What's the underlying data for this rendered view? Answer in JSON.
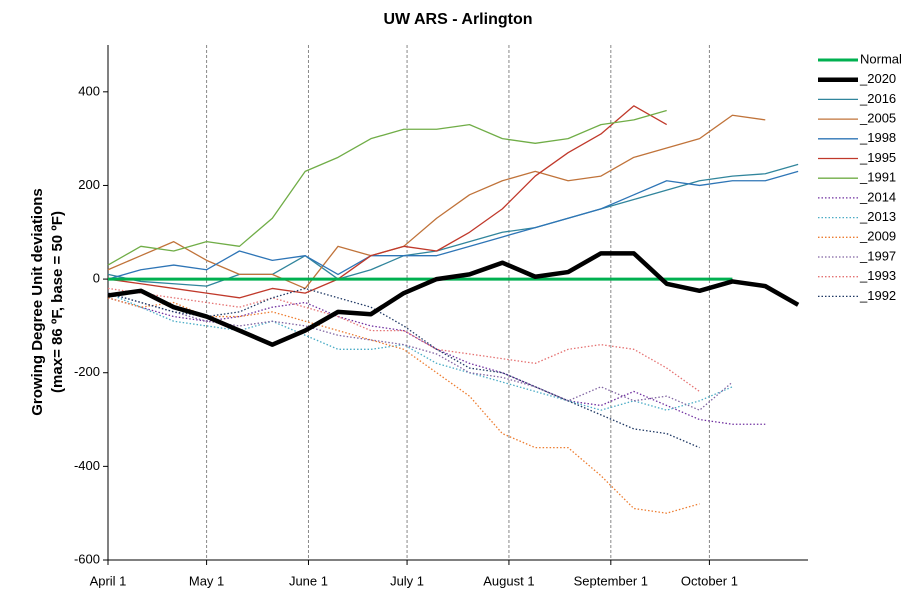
{
  "chart_data": {
    "type": "line",
    "title": "UW ARS - Arlington",
    "y_label": [
      "Growing Degree Unit deviations",
      "(max= 86 ºF, base = 50 ºF)"
    ],
    "x": [
      0,
      10,
      20,
      30,
      40,
      50,
      60,
      70,
      80,
      90,
      100,
      110,
      120,
      130,
      140,
      150,
      160,
      170,
      180,
      190,
      200,
      210
    ],
    "xlim": [
      0,
      213
    ],
    "xticks": [
      {
        "value": 0,
        "label": "April 1"
      },
      {
        "value": 30,
        "label": "May 1"
      },
      {
        "value": 61,
        "label": "June 1"
      },
      {
        "value": 91,
        "label": "July 1"
      },
      {
        "value": 122,
        "label": "August 1"
      },
      {
        "value": 153,
        "label": "September 1"
      },
      {
        "value": 183,
        "label": "October 1"
      }
    ],
    "ylim": [
      -600,
      500
    ],
    "yticks": [
      -600,
      -400,
      -200,
      0,
      200,
      400
    ],
    "x_grid": true,
    "legend": "right",
    "series": [
      {
        "name": "Normal",
        "color": "#00b050",
        "width": 3,
        "style": "solid",
        "values": [
          0,
          0,
          0,
          0,
          0,
          0,
          0,
          0,
          0,
          0,
          0,
          0,
          0,
          0,
          0,
          0,
          0,
          0,
          0,
          0,
          null,
          null
        ]
      },
      {
        "name": "_2020",
        "color": "#000000",
        "width": 4.5,
        "style": "solid",
        "values": [
          -35,
          -25,
          -60,
          -80,
          -110,
          -140,
          -110,
          -70,
          -75,
          -30,
          0,
          10,
          35,
          5,
          15,
          55,
          55,
          -10,
          -25,
          -5,
          -15,
          -55
        ]
      },
      {
        "name": "_2016",
        "color": "#31859c",
        "width": 1.3,
        "style": "solid",
        "values": [
          10,
          -5,
          -10,
          -15,
          10,
          10,
          50,
          0,
          20,
          50,
          60,
          80,
          100,
          110,
          130,
          150,
          170,
          190,
          210,
          220,
          225,
          245
        ]
      },
      {
        "name": "_2005",
        "color": "#c0733a",
        "width": 1.3,
        "style": "solid",
        "values": [
          20,
          50,
          80,
          40,
          10,
          10,
          -20,
          70,
          50,
          70,
          130,
          180,
          210,
          230,
          210,
          220,
          260,
          280,
          300,
          350,
          340,
          null
        ]
      },
      {
        "name": "_1998",
        "color": "#2e75b6",
        "width": 1.3,
        "style": "solid",
        "values": [
          0,
          20,
          30,
          20,
          60,
          40,
          50,
          10,
          50,
          50,
          50,
          70,
          90,
          110,
          130,
          150,
          180,
          210,
          200,
          210,
          210,
          230
        ]
      },
      {
        "name": "_1995",
        "color": "#c0392b",
        "width": 1.3,
        "style": "solid",
        "values": [
          0,
          -10,
          -20,
          -30,
          -40,
          -20,
          -30,
          0,
          50,
          70,
          60,
          100,
          150,
          220,
          270,
          310,
          370,
          330,
          null,
          null,
          null,
          null
        ]
      },
      {
        "name": "_1991",
        "color": "#70ad47",
        "width": 1.3,
        "style": "solid",
        "values": [
          30,
          70,
          60,
          80,
          70,
          130,
          230,
          260,
          300,
          320,
          320,
          330,
          300,
          290,
          300,
          330,
          340,
          360,
          null,
          null,
          null,
          null
        ]
      },
      {
        "name": "_2014",
        "color": "#7030a0",
        "width": 1.3,
        "style": "dotted",
        "values": [
          -40,
          -60,
          -80,
          -90,
          -80,
          -60,
          -50,
          -80,
          -100,
          -110,
          -150,
          -180,
          -200,
          -230,
          -260,
          -270,
          -240,
          -270,
          -300,
          -310,
          -310,
          null
        ]
      },
      {
        "name": "_2013",
        "color": "#4bacc6",
        "width": 1.3,
        "style": "dotted",
        "values": [
          -30,
          -60,
          -90,
          -100,
          -110,
          -90,
          -120,
          -150,
          -150,
          -140,
          -180,
          -200,
          -220,
          -240,
          -260,
          -280,
          -260,
          -280,
          -260,
          -230,
          null,
          null
        ]
      },
      {
        "name": "_2009",
        "color": "#ed7d31",
        "width": 1.3,
        "style": "dotted",
        "values": [
          -40,
          -60,
          -50,
          -80,
          -80,
          -70,
          -90,
          -110,
          -130,
          -150,
          -200,
          -250,
          -330,
          -360,
          -360,
          -420,
          -490,
          -500,
          -480,
          null,
          null,
          null
        ]
      },
      {
        "name": "_1997",
        "color": "#8064a2",
        "width": 1.3,
        "style": "dotted",
        "values": [
          -30,
          -50,
          -70,
          -90,
          -100,
          -90,
          -100,
          -120,
          -130,
          -140,
          -160,
          -200,
          -210,
          -230,
          -260,
          -230,
          -260,
          -250,
          -280,
          -220,
          null,
          null
        ]
      },
      {
        "name": "_1993",
        "color": "#e57373",
        "width": 1.3,
        "style": "dotted",
        "values": [
          -20,
          -30,
          -40,
          -50,
          -60,
          -40,
          -60,
          -80,
          -110,
          -110,
          -150,
          -160,
          -170,
          -180,
          -150,
          -140,
          -150,
          -190,
          -240,
          null,
          null,
          null
        ]
      },
      {
        "name": "_1992",
        "color": "#1f3864",
        "width": 1.3,
        "style": "dotted",
        "values": [
          -30,
          -50,
          -70,
          -80,
          -70,
          -40,
          -20,
          -40,
          -60,
          -100,
          -150,
          -190,
          -200,
          -230,
          -260,
          -290,
          -320,
          -330,
          -360,
          null,
          null,
          null
        ]
      }
    ]
  }
}
